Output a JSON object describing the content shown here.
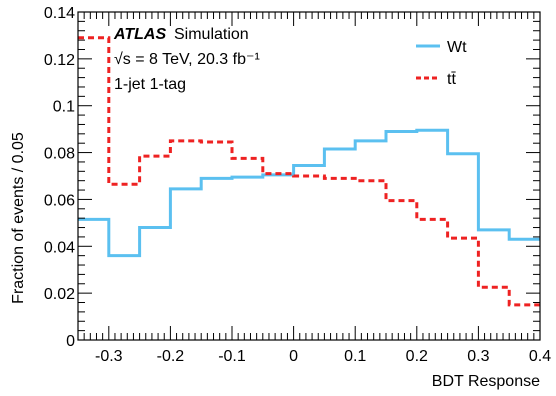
{
  "chart_data": {
    "type": "line",
    "style": "step-histogram",
    "xlabel": "BDT Response",
    "ylabel": "Fraction of events / 0.05",
    "xlim": [
      -0.35,
      0.4
    ],
    "ylim": [
      0,
      0.14
    ],
    "x_ticks": [
      "-0.3",
      "-0.2",
      "-0.1",
      "0",
      "0.1",
      "0.2",
      "0.3",
      "0.4"
    ],
    "y_ticks": [
      "0",
      "0.02",
      "0.04",
      "0.06",
      "0.08",
      "0.1",
      "0.12",
      "0.14"
    ],
    "grid": false,
    "legend_position": "top-right",
    "annotations": {
      "experiment": "ATLAS",
      "label": "Simulation",
      "energy": "√s = 8 TeV, 20.3 fb⁻¹",
      "selection": "1-jet 1-tag"
    },
    "bin_edges": [
      -0.35,
      -0.3,
      -0.25,
      -0.2,
      -0.15,
      -0.1,
      -0.05,
      0.0,
      0.05,
      0.1,
      0.15,
      0.2,
      0.25,
      0.3,
      0.35,
      0.4
    ],
    "series": [
      {
        "name": "Wt",
        "color": "#5bc0f0",
        "dash": "solid",
        "values": [
          0.0515,
          0.036,
          0.048,
          0.0645,
          0.069,
          0.0695,
          0.0705,
          0.0745,
          0.0815,
          0.085,
          0.089,
          0.0895,
          0.0795,
          0.047,
          0.043
        ]
      },
      {
        "name": "tt̄",
        "color": "#ee2222",
        "dash": "dashed",
        "values": [
          0.129,
          0.0665,
          0.0785,
          0.085,
          0.0845,
          0.0775,
          0.071,
          0.07,
          0.069,
          0.068,
          0.0595,
          0.0515,
          0.0435,
          0.0225,
          0.015
        ]
      }
    ]
  }
}
